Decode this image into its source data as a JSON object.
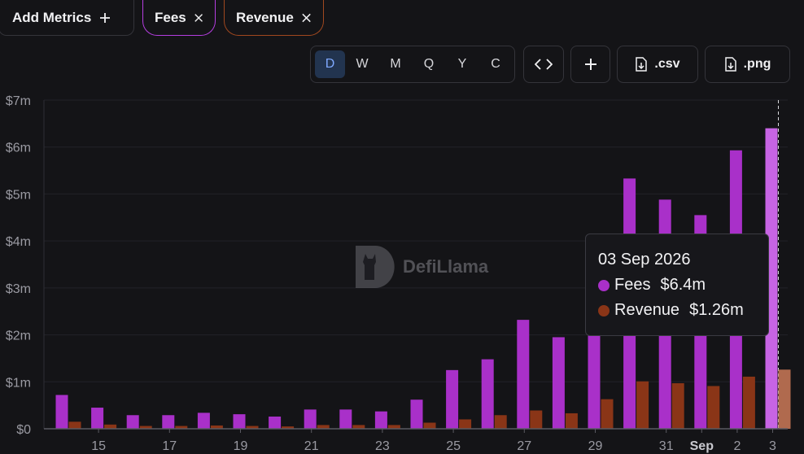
{
  "toolbar": {
    "add_metrics_label": "Add Metrics",
    "metric_pills": [
      {
        "label": "Fees",
        "color": "#b53ee0"
      },
      {
        "label": "Revenue",
        "color": "#a0481f"
      }
    ],
    "periods": [
      "D",
      "W",
      "M",
      "Q",
      "Y",
      "C"
    ],
    "active_period": "D",
    "csv_label": ".csv",
    "png_label": ".png",
    "icons": [
      "plus-icon",
      "close-icon",
      "code-icon",
      "file-download-icon"
    ]
  },
  "watermark": {
    "label": "DefiLlama"
  },
  "tooltip": {
    "date": "03 Sep 2026",
    "fees_label": "Fees",
    "fees_value": "$6.4m",
    "revenue_label": "Revenue",
    "revenue_value": "$1.26m"
  },
  "chart_data": {
    "type": "bar",
    "categories": [
      "14",
      "15",
      "16",
      "17",
      "18",
      "19",
      "20",
      "21",
      "22",
      "23",
      "24",
      "25",
      "26",
      "27",
      "28",
      "29",
      "30",
      "31",
      "1",
      "2",
      "3"
    ],
    "x_tick_labels": [
      "15",
      "17",
      "19",
      "21",
      "23",
      "25",
      "27",
      "29",
      "31",
      "Sep",
      "2",
      "3"
    ],
    "x_tick_positions": [
      "15",
      "17",
      "19",
      "21",
      "23",
      "25",
      "27",
      "29",
      "31",
      "1",
      "2",
      "3"
    ],
    "series": [
      {
        "name": "Fees",
        "color": "#a930c9",
        "values": [
          0.72,
          0.45,
          0.29,
          0.29,
          0.34,
          0.31,
          0.26,
          0.41,
          0.41,
          0.37,
          0.62,
          1.25,
          1.48,
          2.32,
          1.95,
          3.82,
          5.33,
          4.88,
          4.55,
          5.93,
          6.4
        ]
      },
      {
        "name": "Revenue",
        "color": "#8a3517",
        "values": [
          0.15,
          0.09,
          0.06,
          0.06,
          0.07,
          0.06,
          0.05,
          0.08,
          0.08,
          0.08,
          0.13,
          0.2,
          0.29,
          0.39,
          0.33,
          0.63,
          1.01,
          0.97,
          0.91,
          1.11,
          1.26
        ]
      }
    ],
    "y_tick_labels": [
      "$0",
      "$1m",
      "$2m",
      "$3m",
      "$4m",
      "$5m",
      "$6m",
      "$7m"
    ],
    "ylim": [
      0,
      7
    ],
    "highlight_index": 20,
    "grid": true
  }
}
